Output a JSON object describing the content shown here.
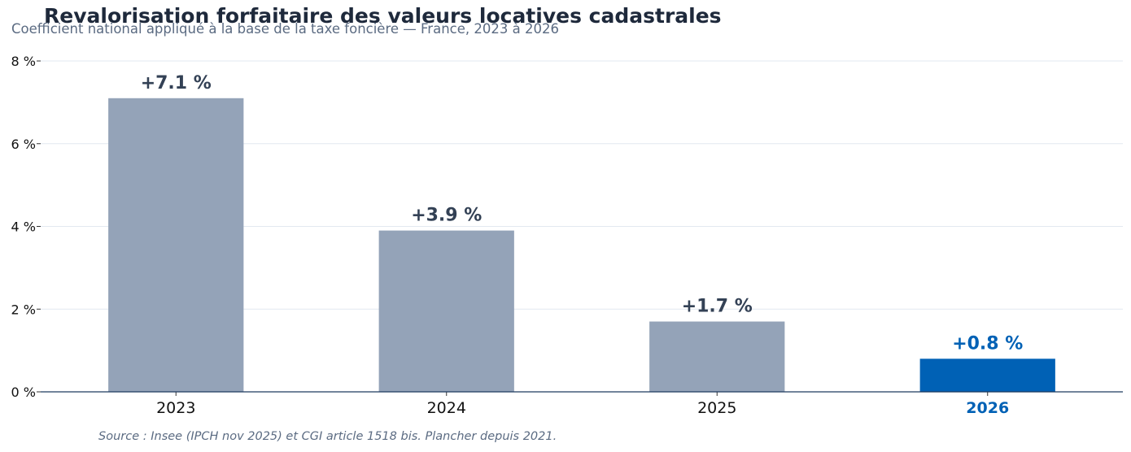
{
  "header": {
    "title": "Revalorisation forfaitaire des valeurs locatives cadastrales",
    "subtitle": "Coefficient national appliqué à la base de la taxe foncière — France, 2023 à 2026"
  },
  "footer": {
    "source": "Source : Insee (IPCH nov 2025) et CGI article 1518 bis. Plancher depuis 2021."
  },
  "chart_data": {
    "type": "bar",
    "title": "Revalorisation forfaitaire des valeurs locatives cadastrales",
    "subtitle": "Coefficient national appliqué à la base de la taxe foncière — France, 2023 à 2026",
    "categories": [
      "2023",
      "2024",
      "2025",
      "2026"
    ],
    "values": [
      7.1,
      3.9,
      1.7,
      0.8
    ],
    "data_labels": [
      "+7.1 %",
      "+3.9 %",
      "+1.7 %",
      "+0.8 %"
    ],
    "highlight_index": 3,
    "xlabel": "",
    "ylabel": "",
    "ylim": [
      0,
      8
    ],
    "yticks": [
      0,
      2,
      4,
      6,
      8
    ],
    "ytick_labels": [
      "0 %",
      "2 %",
      "4 %",
      "6 %",
      "8 %"
    ],
    "grid": "horizontal",
    "legend": "none",
    "colors": {
      "bar": "#94a3b8",
      "highlight": "#0061b5",
      "label": "#334155",
      "axis": "#1e3a5f",
      "grid": "#e2e8f0",
      "tick_text": "#111111"
    }
  }
}
